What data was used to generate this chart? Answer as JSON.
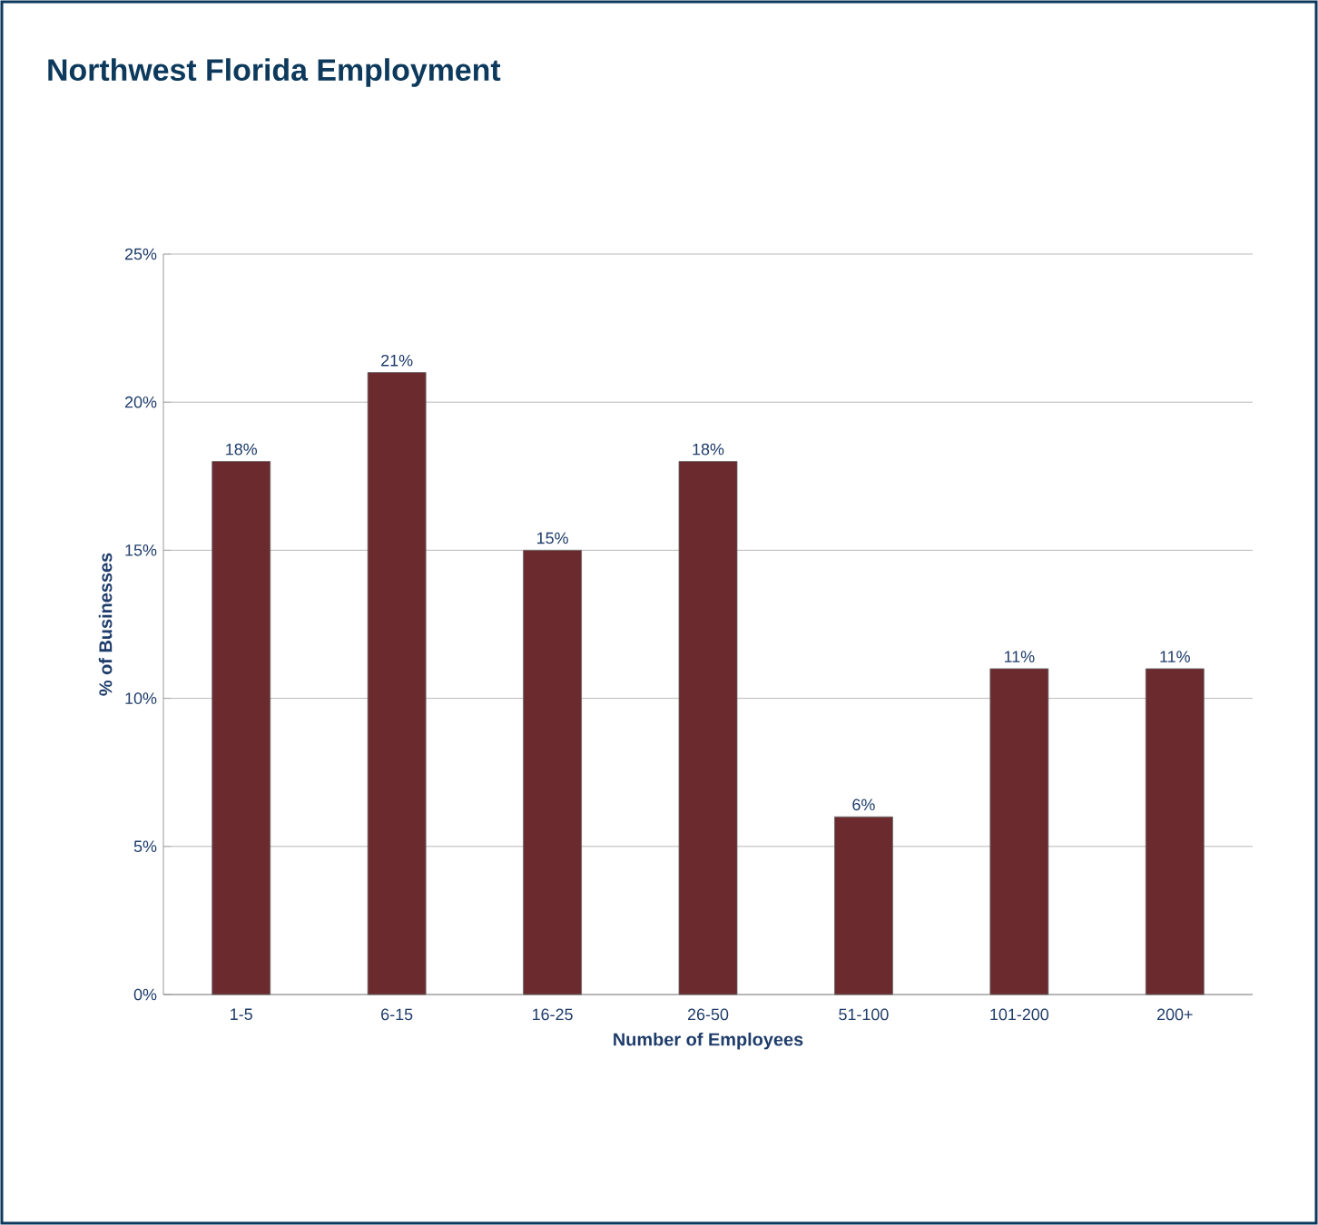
{
  "chart_data": {
    "type": "bar",
    "title": "Northwest Florida Employment",
    "xlabel": "Number of Employees",
    "ylabel": "% of Businesses",
    "categories": [
      "1-5",
      "6-15",
      "16-25",
      "26-50",
      "51-100",
      "101-200",
      "200+"
    ],
    "values": [
      18,
      21,
      15,
      18,
      6,
      11,
      11
    ],
    "value_labels": [
      "18%",
      "21%",
      "15%",
      "18%",
      "6%",
      "11%",
      "11%"
    ],
    "color": "#6b2a2e",
    "ylim": [
      0,
      25
    ],
    "yticks": [
      {
        "value": 0,
        "label": "0%"
      },
      {
        "value": 5,
        "label": "5%"
      },
      {
        "value": 10,
        "label": "10%"
      },
      {
        "value": 15,
        "label": "15%"
      },
      {
        "value": 20,
        "label": "20%"
      },
      {
        "value": 25,
        "label": "25%"
      }
    ],
    "grid": "y"
  }
}
